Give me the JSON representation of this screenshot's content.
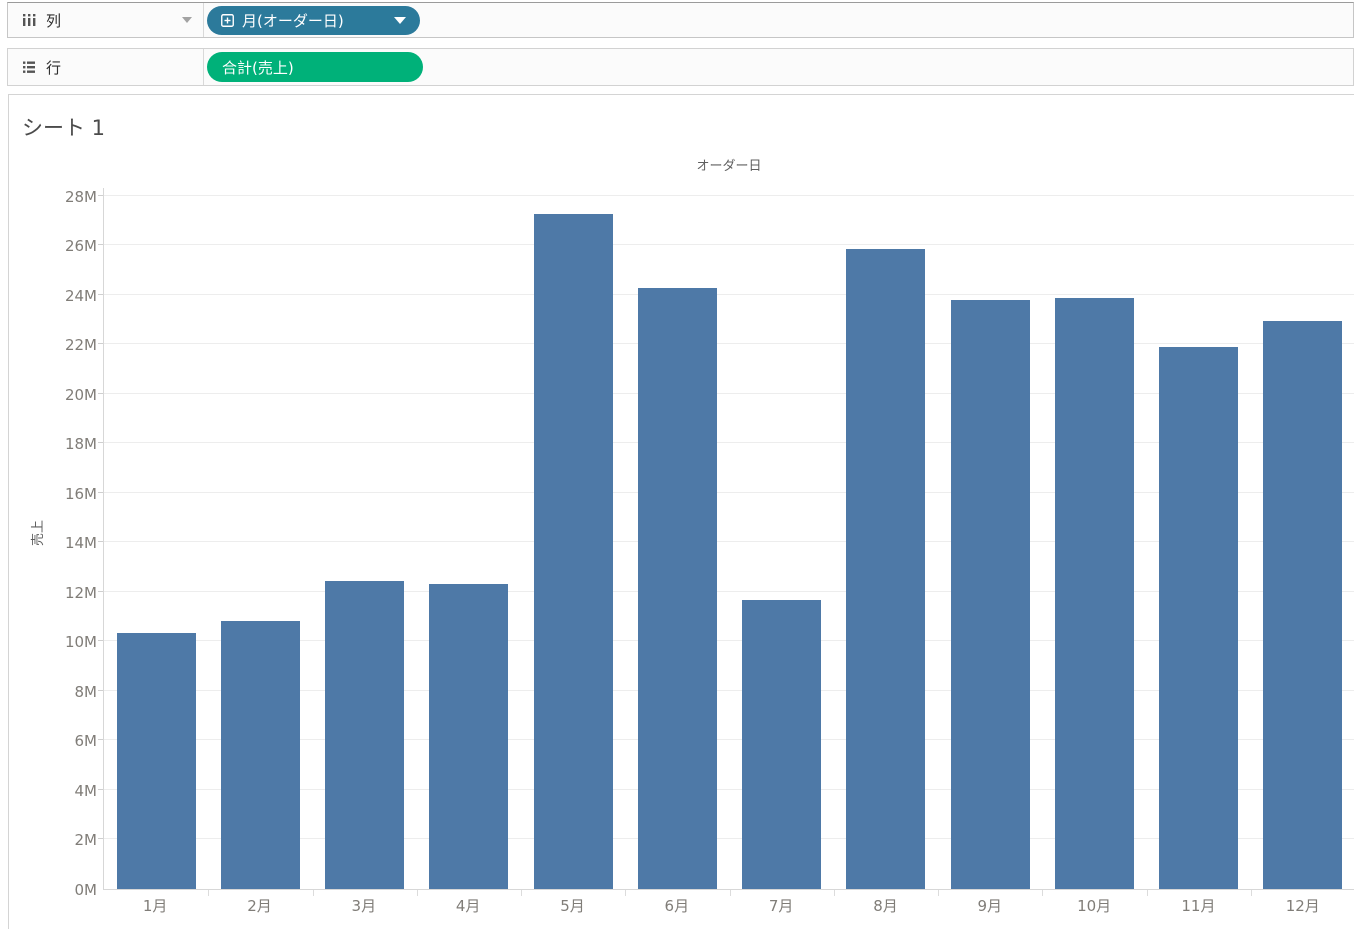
{
  "shelves": {
    "columns": {
      "label": "列",
      "pill": {
        "label": "月(オーダー日)",
        "color": "#2C7A9B",
        "expand_icon": "plus-box",
        "dropdown": "caret-down"
      }
    },
    "rows": {
      "label": "行",
      "pill": {
        "label": "合計(売上)",
        "color": "#00B179"
      }
    }
  },
  "sheet": {
    "title": "シート 1"
  },
  "chart_data": {
    "type": "bar",
    "title": "オーダー日",
    "xlabel": "",
    "ylabel": "売上",
    "unit": "M",
    "categories": [
      "1月",
      "2月",
      "3月",
      "4月",
      "5月",
      "6月",
      "7月",
      "8月",
      "9月",
      "10月",
      "11月",
      "12月"
    ],
    "values": [
      10.33,
      10.82,
      12.43,
      12.33,
      27.27,
      24.26,
      11.68,
      25.86,
      23.79,
      23.88,
      21.88,
      22.93
    ],
    "ylim": [
      0,
      28.31
    ],
    "yticks": [
      0,
      2,
      4,
      6,
      8,
      10,
      12,
      14,
      16,
      18,
      20,
      22,
      24,
      26,
      28
    ],
    "ytick_labels": [
      "0M",
      "2M",
      "4M",
      "6M",
      "8M",
      "10M",
      "12M",
      "14M",
      "16M",
      "18M",
      "20M",
      "22M",
      "24M",
      "26M",
      "28M"
    ],
    "grid": true,
    "legend": "none",
    "bar_color": "#4e79a7"
  }
}
